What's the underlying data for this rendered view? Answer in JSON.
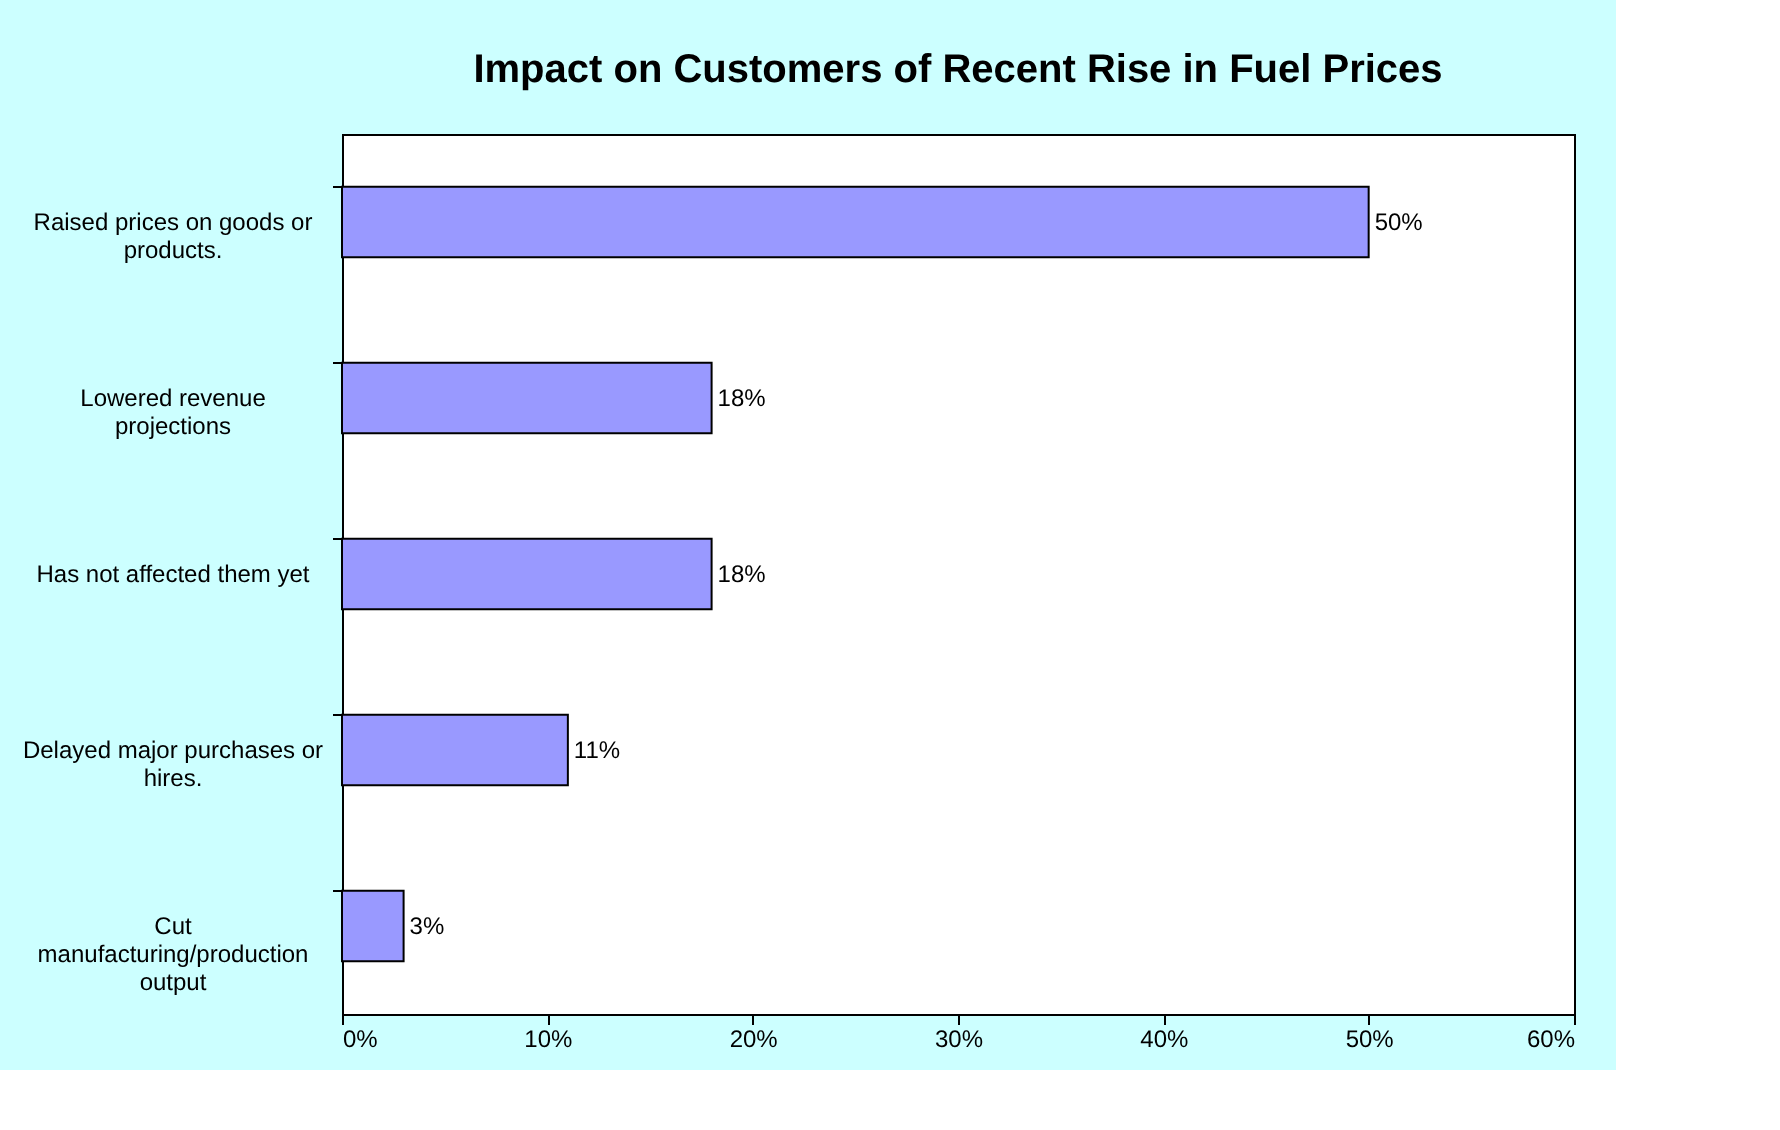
{
  "chart_data": {
    "type": "bar",
    "orientation": "horizontal",
    "title": "Impact on Customers of Recent Rise in Fuel Prices",
    "categories": [
      "Raised prices on goods or products.",
      "Lowered revenue projections",
      "Has not affected them yet",
      "Delayed major purchases or hires.",
      "Cut manufacturing/production output"
    ],
    "values": [
      50,
      18,
      18,
      11,
      3
    ],
    "value_labels": [
      "50%",
      "18%",
      "18%",
      "11%",
      "3%"
    ],
    "color": "#9999ff",
    "grid": false,
    "xlim": [
      0,
      60
    ],
    "xticks": [
      {
        "value": 0,
        "label": "0%"
      },
      {
        "value": 10,
        "label": "10%"
      },
      {
        "value": 20,
        "label": "20%"
      },
      {
        "value": 30,
        "label": "30%"
      },
      {
        "value": 40,
        "label": "40%"
      },
      {
        "value": 50,
        "label": "50%"
      },
      {
        "value": 60,
        "label": "60%"
      }
    ]
  }
}
